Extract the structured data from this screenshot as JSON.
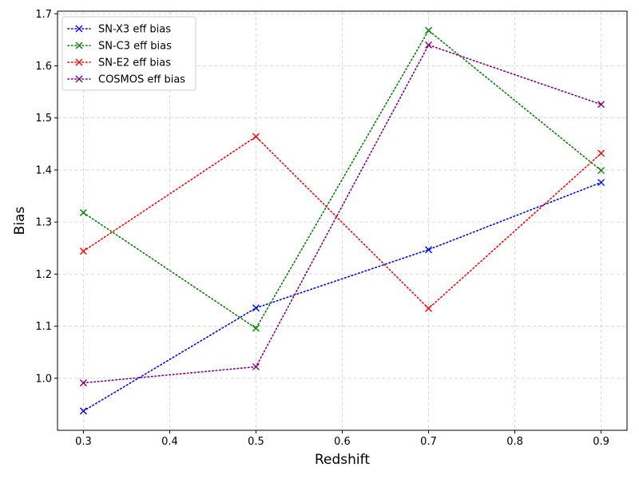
{
  "chart_data": {
    "type": "line",
    "xlabel": "Redshift",
    "ylabel": "Bias",
    "x": [
      0.3,
      0.5,
      0.7,
      0.9
    ],
    "xlim": [
      0.27,
      0.93
    ],
    "ylim": [
      0.9,
      1.705
    ],
    "xticks": [
      "0.3",
      "0.4",
      "0.5",
      "0.6",
      "0.7",
      "0.8",
      "0.9"
    ],
    "yticks": [
      "1.0",
      "1.1",
      "1.2",
      "1.3",
      "1.4",
      "1.5",
      "1.6",
      "1.7"
    ],
    "grid": true,
    "legend_position": "top-left",
    "line_style": "dotted",
    "marker": "x",
    "series": [
      {
        "name": "SN-X3 eff bias",
        "color": "#0000ff",
        "values": [
          0.937,
          1.135,
          1.247,
          1.376
        ]
      },
      {
        "name": "SN-C3 eff bias",
        "color": "#008000",
        "values": [
          1.318,
          1.096,
          1.668,
          1.399
        ]
      },
      {
        "name": "SN-E2 eff bias",
        "color": "#ff0000",
        "values": [
          1.244,
          1.464,
          1.134,
          1.432
        ]
      },
      {
        "name": "COSMOS eff bias",
        "color": "#800080",
        "values": [
          0.991,
          1.022,
          1.64,
          1.526
        ]
      }
    ]
  }
}
